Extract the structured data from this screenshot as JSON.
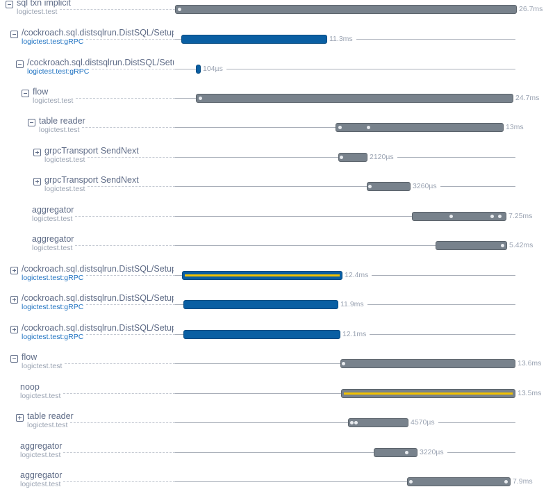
{
  "colors": {
    "blue": "#0a5fa3",
    "gray": "#78828c",
    "yellow": "#f2c200"
  },
  "rows": [
    {
      "title": "sql txn implicit",
      "sub": "logictest.test",
      "toggle": "collapse",
      "duration": "26.7ms"
    },
    {
      "title": "/cockroach.sql.distsqlrun.DistSQL/SetupFlow",
      "sub": "logictest.test:gRPC",
      "toggle": "collapse",
      "duration": "11.3ms"
    },
    {
      "title": "/cockroach.sql.distsqlrun.DistSQL/SetupFlow",
      "sub": "logictest.test:gRPC",
      "toggle": "collapse",
      "duration": "104µs"
    },
    {
      "title": "flow",
      "sub": "logictest.test",
      "toggle": "collapse",
      "duration": "24.7ms"
    },
    {
      "title": "table reader",
      "sub": "logictest.test",
      "toggle": "collapse",
      "duration": "13ms"
    },
    {
      "title": "grpcTransport SendNext",
      "sub": "logictest.test",
      "toggle": "expand",
      "duration": "2120µs"
    },
    {
      "title": "grpcTransport SendNext",
      "sub": "logictest.test",
      "toggle": "expand",
      "duration": "3260µs"
    },
    {
      "title": "aggregator",
      "sub": "logictest.test",
      "toggle": "",
      "duration": "7.25ms"
    },
    {
      "title": "aggregator",
      "sub": "logictest.test",
      "toggle": "",
      "duration": "5.42ms"
    },
    {
      "title": "/cockroach.sql.distsqlrun.DistSQL/SetupFlow",
      "sub": "logictest.test:gRPC",
      "toggle": "expand",
      "duration": "12.4ms"
    },
    {
      "title": "/cockroach.sql.distsqlrun.DistSQL/SetupFlow",
      "sub": "logictest.test:gRPC",
      "toggle": "expand",
      "duration": "11.9ms"
    },
    {
      "title": "/cockroach.sql.distsqlrun.DistSQL/SetupFlow",
      "sub": "logictest.test:gRPC",
      "toggle": "expand",
      "duration": "12.1ms"
    },
    {
      "title": "flow",
      "sub": "logictest.test",
      "toggle": "collapse",
      "duration": "13.6ms"
    },
    {
      "title": "noop",
      "sub": "logictest.test",
      "toggle": "",
      "duration": "13.5ms"
    },
    {
      "title": "table reader",
      "sub": "logictest.test",
      "toggle": "expand",
      "duration": "4570µs"
    },
    {
      "title": "aggregator",
      "sub": "logictest.test",
      "toggle": "",
      "duration": "3220µs"
    },
    {
      "title": "aggregator",
      "sub": "logictest.test",
      "toggle": "",
      "duration": "7.9ms"
    }
  ]
}
